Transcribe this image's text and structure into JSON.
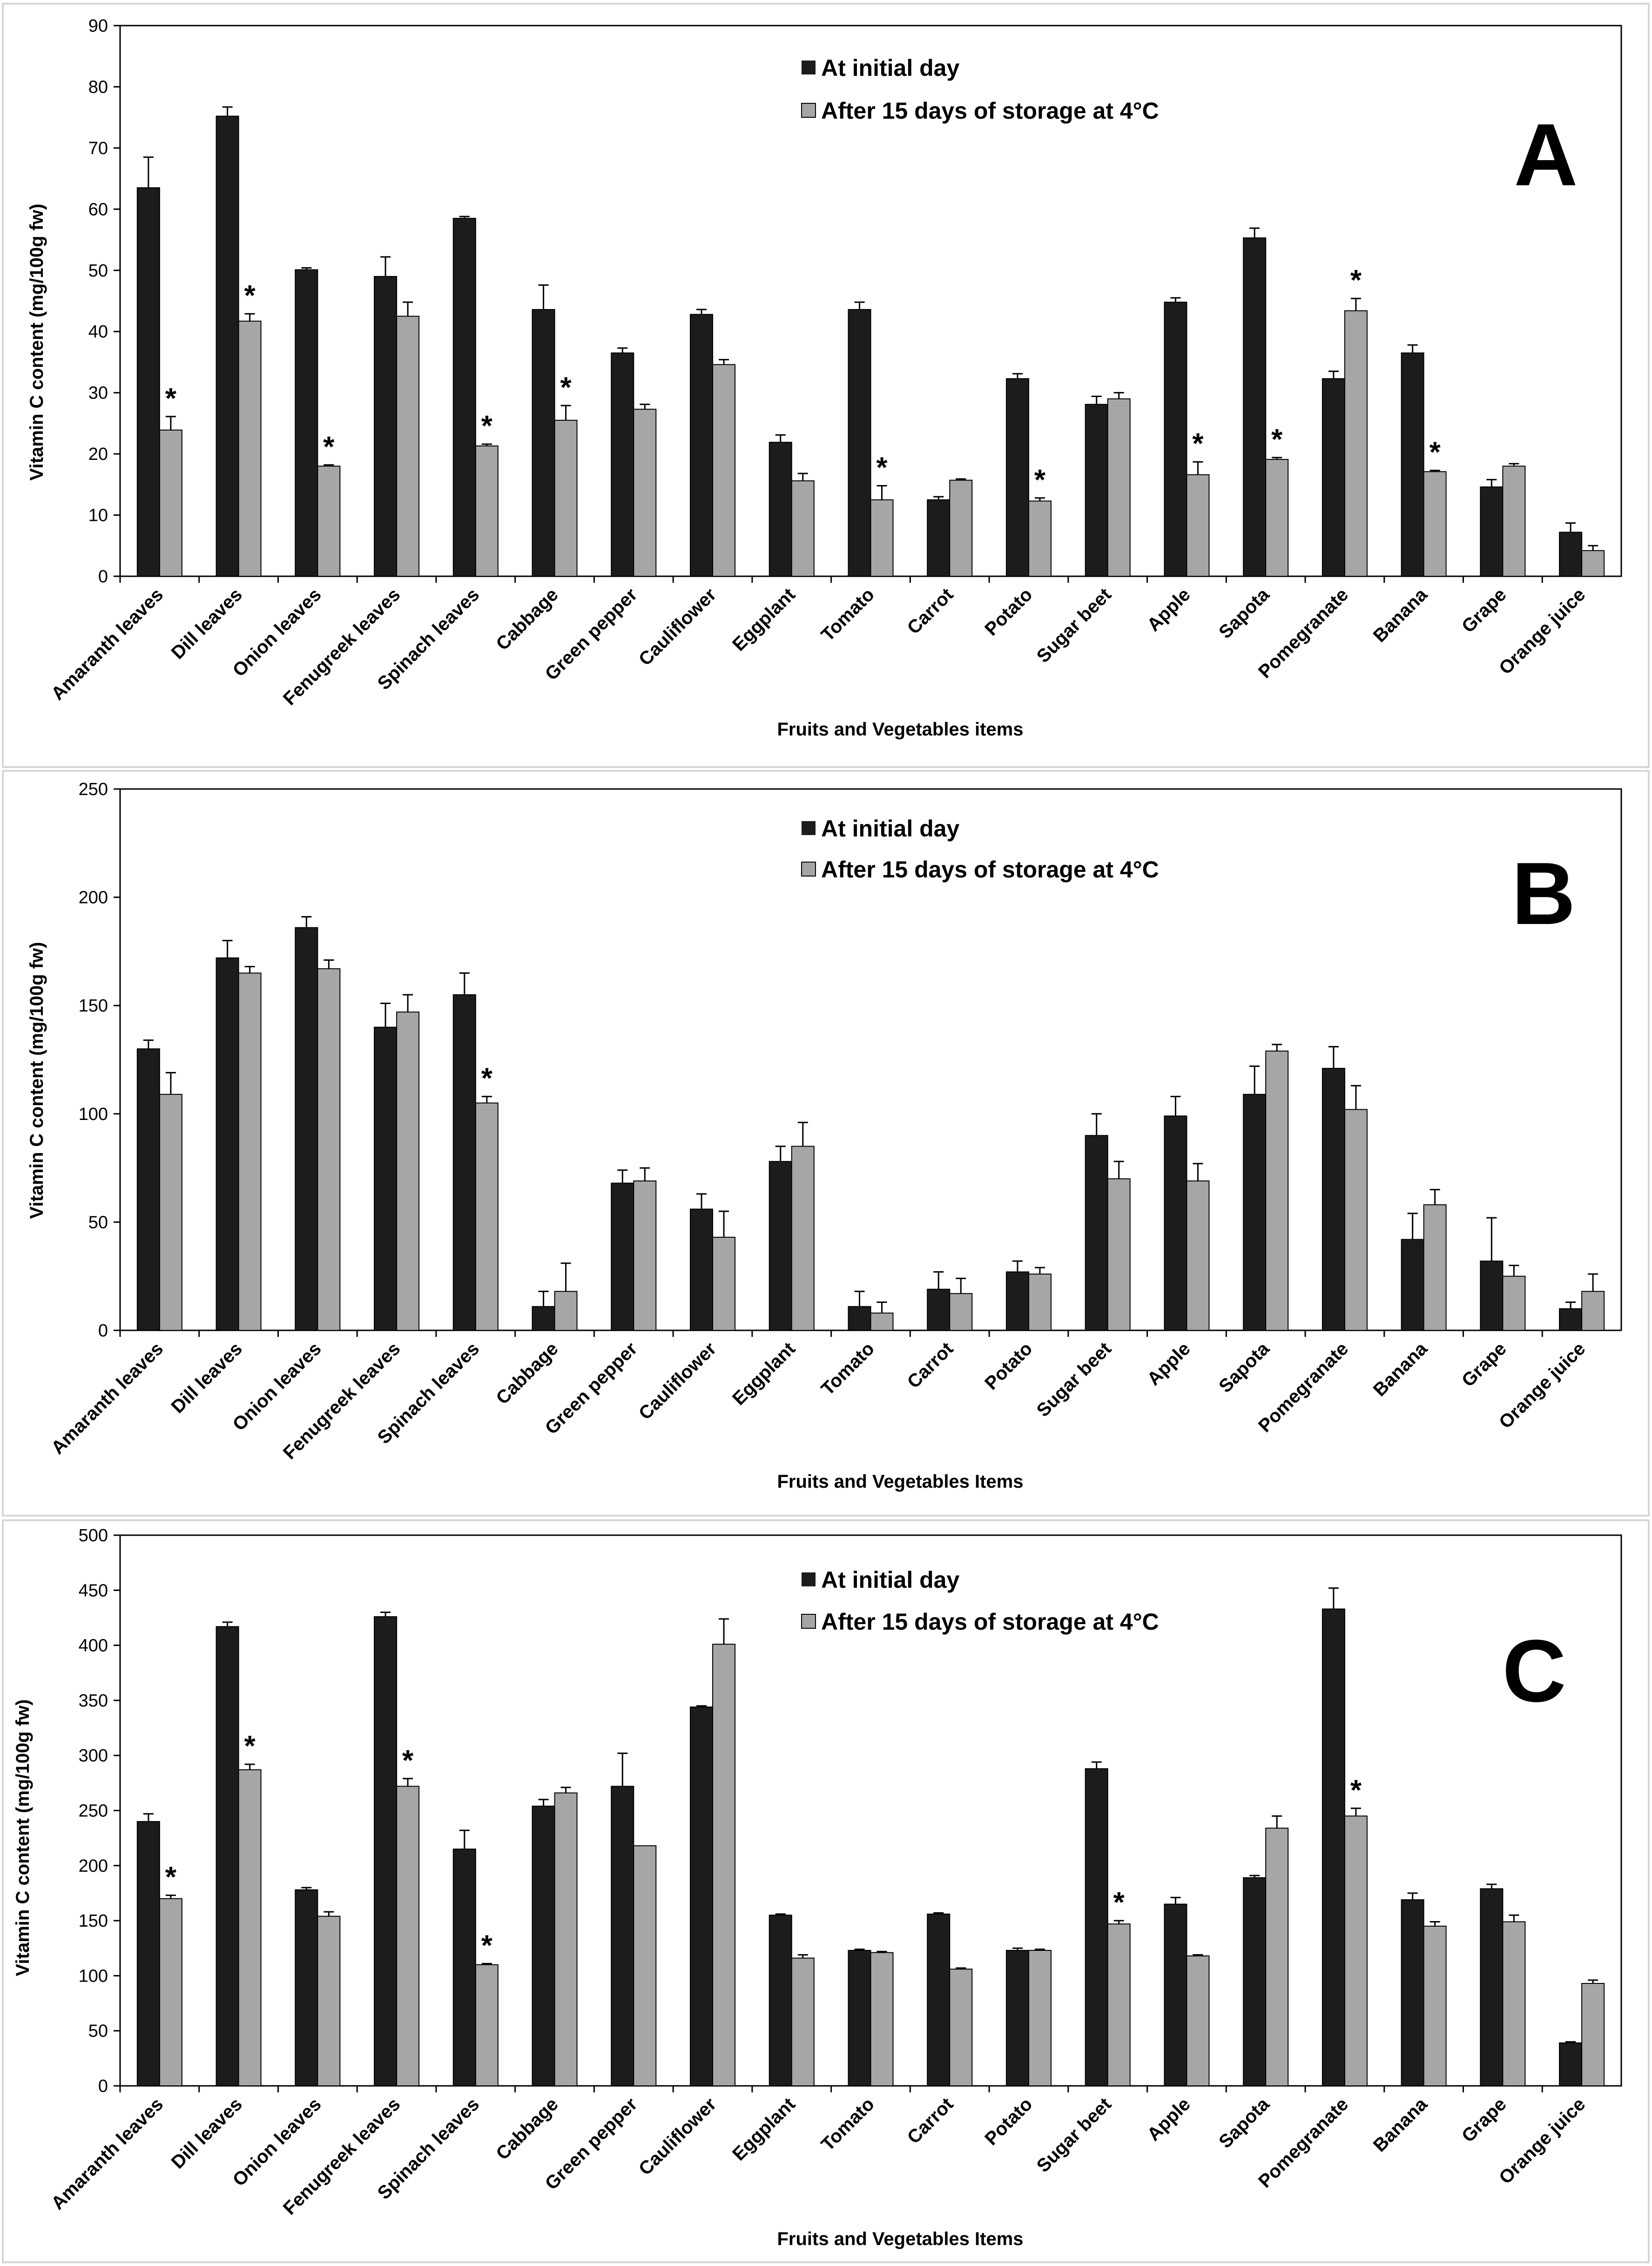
{
  "chart_data": [
    {
      "type": "bar",
      "panel": "A",
      "ylabel": "Vitamin C content (mg/100g fw)",
      "xlabel": "Fruits and Vegetables items",
      "ylim": [
        0,
        90
      ],
      "yticks": [
        0,
        10,
        20,
        30,
        40,
        50,
        60,
        70,
        80,
        90
      ],
      "legend_position": "top-center",
      "categories": [
        "Amaranth leaves",
        "Dill leaves",
        "Onion leaves",
        "Fenugreek leaves",
        "Spinach leaves",
        "Cabbage",
        "Green pepper",
        "Cauliflower",
        "Eggplant",
        "Tomato",
        "Carrot",
        "Potato",
        "Sugar beet",
        "Apple",
        "Sapota",
        "Pomegranate",
        "Banana",
        "Grape",
        "Orange juice"
      ],
      "series": [
        {
          "name": "At initial day",
          "color": "#1c1c1c",
          "values": [
            63.5,
            75.2,
            50.1,
            49.0,
            58.5,
            43.6,
            36.5,
            42.8,
            21.9,
            43.6,
            12.5,
            32.3,
            28.1,
            44.8,
            55.3,
            32.3,
            36.5,
            14.6,
            7.2
          ],
          "errors": [
            5.0,
            1.5,
            0.3,
            3.2,
            0.3,
            4.0,
            0.8,
            0.8,
            1.2,
            1.2,
            0.5,
            0.8,
            1.3,
            0.7,
            1.6,
            1.2,
            1.3,
            1.2,
            1.5
          ]
        },
        {
          "name": "After 15 days of storage at 4°C",
          "color": "#a6a6a6",
          "values": [
            23.9,
            41.7,
            18.0,
            42.5,
            21.3,
            25.5,
            27.3,
            34.6,
            15.6,
            12.5,
            15.7,
            12.3,
            29.0,
            16.6,
            19.1,
            43.4,
            17.1,
            18.0,
            4.2
          ],
          "errors": [
            2.2,
            1.2,
            0.2,
            2.3,
            0.3,
            2.4,
            0.8,
            0.8,
            1.2,
            2.3,
            0.2,
            0.5,
            1.0,
            2.1,
            0.3,
            2.0,
            0.2,
            0.4,
            0.8
          ]
        }
      ],
      "significant": [
        0,
        1,
        2,
        4,
        5,
        9,
        11,
        13,
        14,
        15,
        16
      ]
    },
    {
      "type": "bar",
      "panel": "B",
      "ylabel": "Vitamin C content (mg/100g fw)",
      "xlabel": "Fruits and Vegetables Items",
      "ylim": [
        0,
        250
      ],
      "yticks": [
        0,
        50,
        100,
        150,
        200,
        250
      ],
      "legend_position": "top-center",
      "categories": [
        "Amaranth leaves",
        "Dill leaves",
        "Onion leaves",
        "Fenugreek leaves",
        "Spinach leaves",
        "Cabbage",
        "Green pepper",
        "Cauliflower",
        "Eggplant",
        "Tomato",
        "Carrot",
        "Potato",
        "Sugar beet",
        "Apple",
        "Sapota",
        "Pomegranate",
        "Banana",
        "Grape",
        "Orange juice"
      ],
      "series": [
        {
          "name": "At initial day",
          "color": "#1c1c1c",
          "values": [
            130,
            172,
            186,
            140,
            155,
            11,
            68,
            56,
            78,
            11,
            19,
            27,
            90,
            99,
            109,
            121,
            42,
            32,
            10
          ],
          "errors": [
            4,
            8,
            5,
            11,
            10,
            7,
            6,
            7,
            7,
            7,
            8,
            5,
            10,
            9,
            13,
            10,
            12,
            20,
            3
          ]
        },
        {
          "name": "After 15 days of storage at 4°C",
          "color": "#a6a6a6",
          "values": [
            109,
            165,
            167,
            147,
            105,
            18,
            69,
            43,
            85,
            8,
            17,
            26,
            70,
            69,
            129,
            102,
            58,
            25,
            18
          ],
          "errors": [
            10,
            3,
            4,
            8,
            3,
            13,
            6,
            12,
            11,
            5,
            7,
            3,
            8,
            8,
            3,
            11,
            7,
            5,
            8
          ]
        }
      ],
      "significant": [
        4
      ]
    },
    {
      "type": "bar",
      "panel": "C",
      "ylabel": "Vitamin C content (mg/100g fw)",
      "xlabel": "Fruits and Vegetables Items",
      "ylim": [
        0,
        500
      ],
      "yticks": [
        0,
        50,
        100,
        150,
        200,
        250,
        300,
        350,
        400,
        450,
        500
      ],
      "legend_position": "top-center",
      "categories": [
        "Amaranth leaves",
        "Dill leaves",
        "Onion leaves",
        "Fenugreek leaves",
        "Spinach leaves",
        "Cabbage",
        "Green pepper",
        "Cauliflower",
        "Eggplant",
        "Tomato",
        "Carrot",
        "Potato",
        "Sugar beet",
        "Apple",
        "Sapota",
        "Pomegranate",
        "Banana",
        "Grape",
        "Orange juice"
      ],
      "series": [
        {
          "name": "At initial day",
          "color": "#1c1c1c",
          "values": [
            240,
            417,
            178,
            426,
            215,
            254,
            272,
            344,
            155,
            123,
            156,
            123,
            288,
            165,
            189,
            433,
            169,
            179,
            39
          ],
          "errors": [
            7,
            4,
            2,
            4,
            17,
            6,
            30,
            1,
            1,
            1,
            1,
            2,
            6,
            6,
            2,
            19,
            6,
            4,
            1
          ]
        },
        {
          "name": "After 15 days of storage at 4°C",
          "color": "#a6a6a6",
          "values": [
            170,
            287,
            154,
            272,
            110,
            266,
            218,
            401,
            116,
            121,
            106,
            123,
            147,
            118,
            234,
            245,
            145,
            149,
            93
          ],
          "errors": [
            3,
            5,
            4,
            7,
            1,
            5,
            0,
            23,
            3,
            1,
            1,
            1,
            3,
            1,
            11,
            7,
            4,
            6,
            3
          ]
        }
      ],
      "significant": [
        0,
        1,
        3,
        4,
        12,
        15
      ]
    }
  ]
}
